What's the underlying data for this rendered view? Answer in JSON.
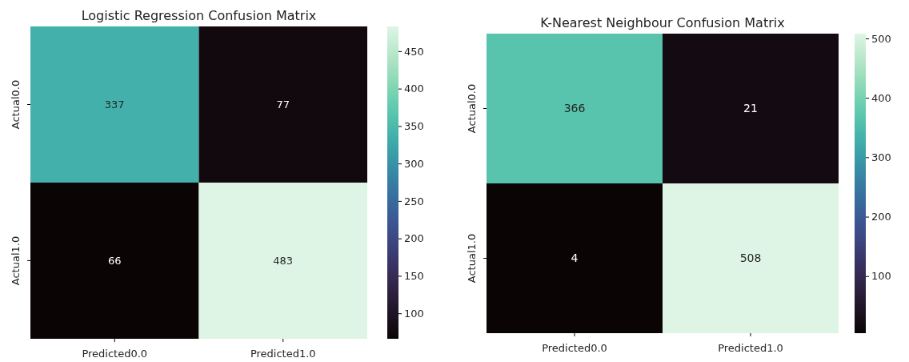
{
  "chart_data": [
    {
      "type": "heatmap",
      "title": "Logistic Regression Confusion Matrix",
      "categories": [
        "Predicted0.0",
        "Predicted1.0"
      ],
      "y_categories": [
        "Actual0.0",
        "Actual1.0"
      ],
      "cells": [
        [
          337,
          77
        ],
        [
          66,
          483
        ]
      ],
      "clim": [
        66,
        483
      ],
      "cticks": [
        100,
        150,
        200,
        250,
        300,
        350,
        400,
        450
      ],
      "data_labels": true
    },
    {
      "type": "heatmap",
      "title": "K-Nearest Neighbour Confusion Matrix",
      "categories": [
        "Predicted0.0",
        "Predicted1.0"
      ],
      "y_categories": [
        "Actual0.0",
        "Actual1.0"
      ],
      "cells": [
        [
          366,
          21
        ],
        [
          4,
          508
        ]
      ],
      "clim": [
        4,
        508
      ],
      "cticks": [
        100,
        200,
        300,
        400,
        500
      ],
      "data_labels": true
    }
  ]
}
